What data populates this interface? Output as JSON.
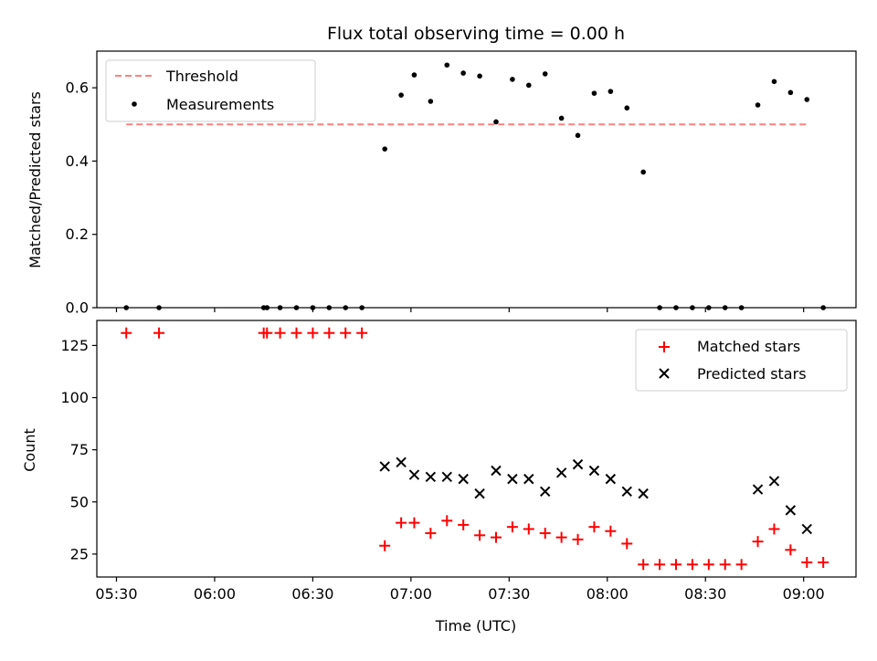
{
  "chart_data": [
    {
      "type": "scatter",
      "title": "Flux total observing time = 0.00 h",
      "xlabel": "",
      "ylabel": "Matched/Predicted stars",
      "ylim": [
        0,
        0.7
      ],
      "yticks": [
        0.0,
        0.2,
        0.4,
        0.6
      ],
      "ytick_labels": [
        "0.0",
        "0.2",
        "0.4",
        "0.6"
      ],
      "legend_placement": "upper-left",
      "series": [
        {
          "name": "Threshold",
          "kind": "line",
          "style": "dashed",
          "color": "#ff7f7f",
          "x": [
            "05:33",
            "09:01"
          ],
          "y": [
            0.5,
            0.5
          ]
        },
        {
          "name": "Measurements",
          "kind": "scatter",
          "marker": "dot",
          "color": "#000000",
          "x": [
            "05:33",
            "05:43",
            "06:15",
            "06:16",
            "06:20",
            "06:25",
            "06:30",
            "06:35",
            "06:40",
            "06:45",
            "06:52",
            "06:57",
            "07:01",
            "07:06",
            "07:11",
            "07:16",
            "07:21",
            "07:26",
            "07:31",
            "07:36",
            "07:41",
            "07:46",
            "07:51",
            "07:56",
            "08:01",
            "08:06",
            "08:11",
            "08:16",
            "08:21",
            "08:26",
            "08:31",
            "08:36",
            "08:41",
            "08:46",
            "08:51",
            "08:56",
            "09:01",
            "09:06"
          ],
          "y": [
            0,
            0,
            0,
            0,
            0,
            0,
            0,
            0,
            0,
            0,
            0.433,
            0.58,
            0.635,
            0.563,
            0.662,
            0.64,
            0.632,
            0.507,
            0.623,
            0.607,
            0.638,
            0.517,
            0.47,
            0.585,
            0.59,
            0.545,
            0.37,
            0,
            0,
            0,
            0,
            0,
            0,
            0.553,
            0.617,
            0.587,
            0.568,
            0
          ]
        }
      ]
    },
    {
      "type": "scatter",
      "title": "",
      "xlabel": "Time (UTC)",
      "ylabel": "Count",
      "ylim": [
        14,
        137
      ],
      "yticks": [
        25,
        50,
        75,
        100,
        125
      ],
      "ytick_labels": [
        "25",
        "50",
        "75",
        "100",
        "125"
      ],
      "xlim": [
        "05:24",
        "09:16"
      ],
      "xticks": [
        "05:30",
        "06:00",
        "06:30",
        "07:00",
        "07:30",
        "08:00",
        "08:30",
        "09:00"
      ],
      "xtick_labels": [
        "05:30",
        "06:00",
        "06:30",
        "07:00",
        "07:30",
        "08:00",
        "08:30",
        "09:00"
      ],
      "legend_placement": "upper-right",
      "series": [
        {
          "name": "Matched stars",
          "kind": "scatter",
          "marker": "plus",
          "color": "#ff0000",
          "x": [
            "05:33",
            "05:43",
            "06:15",
            "06:16",
            "06:20",
            "06:25",
            "06:30",
            "06:35",
            "06:40",
            "06:45",
            "06:52",
            "06:57",
            "07:01",
            "07:06",
            "07:11",
            "07:16",
            "07:21",
            "07:26",
            "07:31",
            "07:36",
            "07:41",
            "07:46",
            "07:51",
            "07:56",
            "08:01",
            "08:06",
            "08:11",
            "08:16",
            "08:21",
            "08:26",
            "08:31",
            "08:36",
            "08:41",
            "08:46",
            "08:51",
            "08:56",
            "09:01",
            "09:06"
          ],
          "y": [
            131,
            131,
            131,
            131,
            131,
            131,
            131,
            131,
            131,
            131,
            29,
            40,
            40,
            35,
            41,
            39,
            34,
            33,
            38,
            37,
            35,
            33,
            32,
            38,
            36,
            30,
            20,
            20,
            20,
            20,
            20,
            20,
            20,
            31,
            37,
            27,
            21,
            21
          ]
        },
        {
          "name": "Predicted stars",
          "kind": "scatter",
          "marker": "x",
          "color": "#000000",
          "x": [
            "06:52",
            "06:57",
            "07:01",
            "07:06",
            "07:11",
            "07:16",
            "07:21",
            "07:26",
            "07:31",
            "07:36",
            "07:41",
            "07:46",
            "07:51",
            "07:56",
            "08:01",
            "08:06",
            "08:11",
            "08:46",
            "08:51",
            "08:56",
            "09:01"
          ],
          "y": [
            67,
            69,
            63,
            62,
            62,
            61,
            54,
            65,
            61,
            61,
            55,
            64,
            68,
            65,
            61,
            55,
            54,
            56,
            60,
            46,
            37
          ]
        }
      ]
    }
  ]
}
